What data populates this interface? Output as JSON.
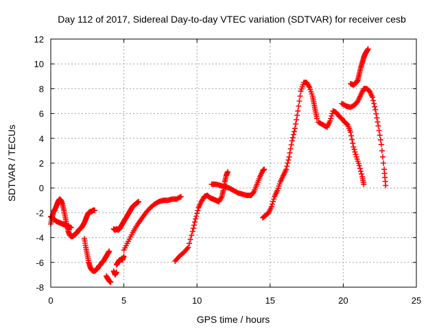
{
  "chart_data": {
    "type": "scatter",
    "title": "Day 112 of 2017, Sidereal Day-to-day VTEC variation (SDTVAR) for receiver cesb",
    "xlabel": "GPS time / hours",
    "ylabel": "SDTVAR / TECUs",
    "xlim": [
      0,
      25
    ],
    "ylim": [
      -8,
      12
    ],
    "x_ticks": [
      "0",
      "5",
      "10",
      "15",
      "20",
      "25"
    ],
    "y_ticks": [
      "-8",
      "-6",
      "-4",
      "-2",
      "0",
      "2",
      "4",
      "6",
      "8",
      "10",
      "12"
    ],
    "grid": true,
    "marker": "plus",
    "color": "#ff0000",
    "series": [
      {
        "x": [
          0.0,
          0.1,
          0.2,
          0.3,
          0.4,
          0.5,
          0.6,
          0.7,
          0.8,
          0.9,
          1.0,
          1.1,
          1.2,
          1.3,
          1.4,
          1.5,
          1.6,
          1.7,
          1.8,
          1.9,
          2.0,
          2.1,
          2.2,
          2.3,
          2.4,
          2.5,
          2.6,
          2.7,
          2.8,
          2.9,
          3.0
        ],
        "y": [
          -2.9,
          -2.3,
          -1.9,
          -1.7,
          -1.4,
          -1.1,
          -0.9,
          -1.0,
          -1.3,
          -1.8,
          -2.4,
          -3.0,
          -3.5,
          -3.8,
          -3.9,
          -3.9,
          -3.8,
          -3.7,
          -3.6,
          -3.4,
          -3.3,
          -3.2,
          -3.0,
          -2.8,
          -2.5,
          -2.2,
          -2.0,
          -1.9,
          -1.9,
          -1.8,
          -1.8
        ]
      },
      {
        "x": [
          0.0,
          0.2,
          0.4,
          0.6,
          0.8,
          1.0,
          1.2,
          1.4
        ],
        "y": [
          -2.3,
          -2.5,
          -2.7,
          -2.8,
          -2.9,
          -3.0,
          -3.1,
          -3.2
        ]
      },
      {
        "x": [
          2.3,
          2.4,
          2.5,
          2.6,
          2.7,
          2.8,
          2.9,
          3.0,
          3.1,
          3.2,
          3.3,
          3.4,
          3.5,
          3.6,
          3.7,
          3.8,
          3.9,
          4.0
        ],
        "y": [
          -4.1,
          -4.8,
          -5.4,
          -6.0,
          -6.4,
          -6.6,
          -6.7,
          -6.7,
          -6.6,
          -6.5,
          -6.3,
          -6.2,
          -6.0,
          -5.9,
          -5.7,
          -5.5,
          -5.3,
          -5.1
        ]
      },
      {
        "x": [
          3.8,
          3.9,
          4.0,
          4.1
        ],
        "y": [
          -7.1,
          -7.3,
          -7.5,
          -7.6
        ]
      },
      {
        "x": [
          4.3,
          4.4,
          4.5
        ],
        "y": [
          -6.7,
          -7.0,
          -6.8
        ]
      },
      {
        "x": [
          4.5,
          4.6,
          4.7,
          4.8,
          4.9,
          5.0
        ],
        "y": [
          -6.2,
          -6.0,
          -5.8,
          -5.8,
          -5.8,
          -5.5
        ]
      },
      {
        "x": [
          4.3,
          4.4,
          4.5,
          4.6,
          4.7,
          4.8,
          4.9,
          5.0,
          5.1,
          5.2,
          5.3,
          5.4,
          5.5,
          5.6,
          5.7,
          5.8,
          5.9,
          6.0
        ],
        "y": [
          -3.3,
          -3.4,
          -3.3,
          -3.4,
          -3.3,
          -3.1,
          -2.9,
          -2.7,
          -2.5,
          -2.3,
          -2.1,
          -1.9,
          -1.7,
          -1.5,
          -1.4,
          -1.3,
          -1.2,
          -1.1
        ]
      },
      {
        "x": [
          5.0,
          5.3,
          5.6,
          5.9,
          6.2,
          6.5,
          6.8,
          7.1,
          7.4,
          7.7,
          8.0,
          8.3,
          8.6,
          8.9
        ],
        "y": [
          -5.0,
          -4.3,
          -3.6,
          -3.0,
          -2.5,
          -2.0,
          -1.6,
          -1.3,
          -1.1,
          -1.0,
          -1.0,
          -0.9,
          -0.9,
          -0.7
        ]
      },
      {
        "x": [
          8.5,
          8.8,
          9.1,
          9.4,
          9.7,
          9.9,
          10.1,
          10.3,
          10.5,
          10.7,
          10.9,
          11.1,
          11.3,
          11.5,
          11.7,
          11.8,
          11.9,
          12.0,
          12.1
        ],
        "y": [
          -5.9,
          -5.5,
          -5.2,
          -4.8,
          -3.5,
          -2.5,
          -1.6,
          -1.1,
          -0.7,
          -0.6,
          -0.8,
          -0.9,
          -1.0,
          -1.1,
          -0.7,
          -0.2,
          0.5,
          1.0,
          1.3
        ]
      },
      {
        "x": [
          11.0,
          11.3,
          11.6,
          11.9,
          12.2,
          12.5,
          12.8,
          13.1,
          13.4,
          13.7,
          13.9,
          14.1,
          14.3,
          14.5,
          14.6
        ],
        "y": [
          0.3,
          0.3,
          0.2,
          0.1,
          0.0,
          -0.2,
          -0.4,
          -0.5,
          -0.6,
          -0.6,
          -0.3,
          0.3,
          0.9,
          1.4,
          1.5
        ]
      },
      {
        "x": [
          14.5,
          14.7,
          14.9,
          15.1,
          15.3,
          15.5,
          15.7,
          15.9,
          16.1,
          16.3,
          16.5,
          16.7,
          16.9,
          17.1,
          17.3,
          17.5,
          17.7,
          17.9,
          18.0,
          18.1,
          18.2
        ],
        "y": [
          -2.4,
          -2.2,
          -2.0,
          -1.5,
          -0.7,
          -0.2,
          0.5,
          1.0,
          1.5,
          2.5,
          3.8,
          4.8,
          6.2,
          7.8,
          8.5,
          8.5,
          8.1,
          7.4,
          6.8,
          6.2,
          5.6
        ]
      },
      {
        "x": [
          18.3,
          18.6,
          18.9,
          19.1,
          19.3,
          19.5,
          19.7,
          19.9,
          20.1,
          20.3,
          20.5,
          20.7,
          20.9,
          21.1,
          21.3,
          21.4
        ],
        "y": [
          5.3,
          5.1,
          4.9,
          5.4,
          6.2,
          6.1,
          5.8,
          5.6,
          5.3,
          5.1,
          4.5,
          3.3,
          2.5,
          1.8,
          0.9,
          0.3
        ]
      },
      {
        "x": [
          19.9,
          20.2,
          20.5,
          20.8,
          21.0,
          21.2,
          21.4,
          21.6,
          21.8,
          22.0,
          22.2,
          22.4,
          22.6,
          22.8,
          22.9
        ],
        "y": [
          6.8,
          6.6,
          6.5,
          6.7,
          7.0,
          7.5,
          8.0,
          8.0,
          7.8,
          7.3,
          6.3,
          5.0,
          3.5,
          1.5,
          0.2
        ]
      },
      {
        "x": [
          20.5,
          20.7,
          20.9,
          21.0,
          21.1,
          21.2,
          21.3,
          21.4,
          21.5,
          21.6,
          21.7
        ],
        "y": [
          8.4,
          8.3,
          8.5,
          8.7,
          9.2,
          9.7,
          10.1,
          10.5,
          10.8,
          11.0,
          11.2
        ]
      }
    ]
  }
}
